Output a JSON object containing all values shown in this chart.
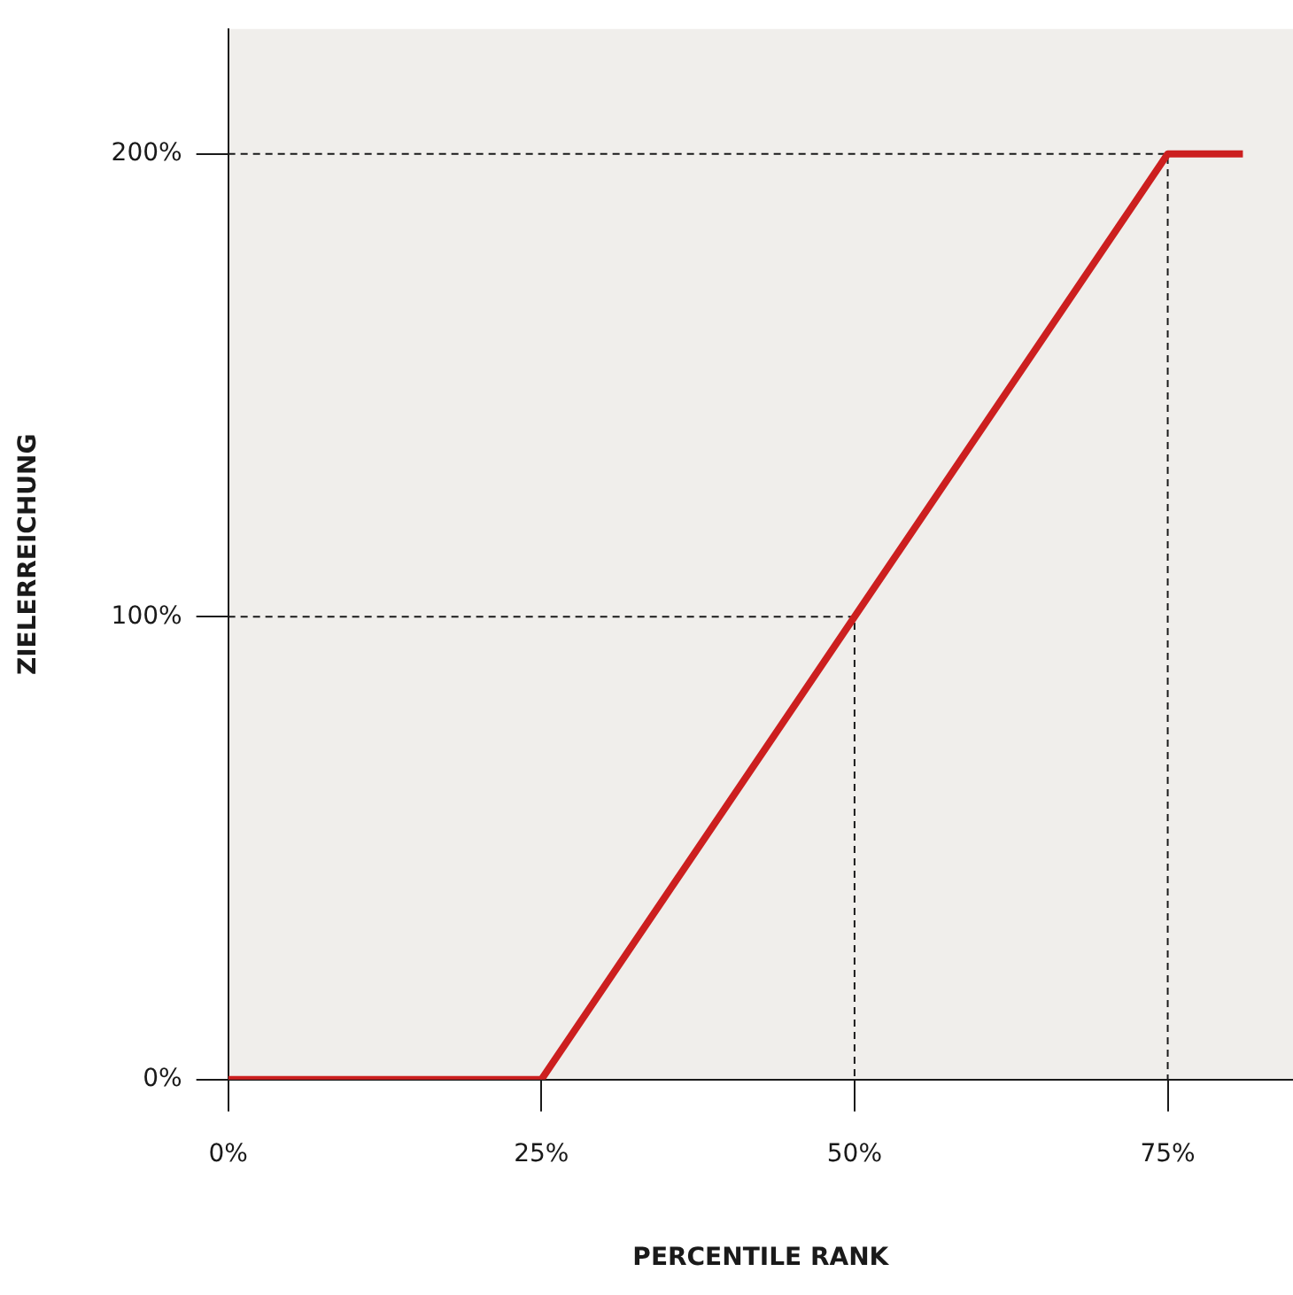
{
  "chart_data": {
    "type": "line",
    "xlabel": "PERCENTILE RANK",
    "ylabel": "ZIELERREICHUNG",
    "xlim": [
      0,
      85
    ],
    "xticks": [
      {
        "value": 0,
        "label": "0%"
      },
      {
        "value": 25,
        "label": "25%"
      },
      {
        "value": 50,
        "label": "50%"
      },
      {
        "value": 75,
        "label": "75%"
      }
    ],
    "ylim": [
      0,
      227
    ],
    "yticks": [
      {
        "value": 0,
        "label": "0%"
      },
      {
        "value": 100,
        "label": "100%"
      },
      {
        "value": 200,
        "label": "200%"
      }
    ],
    "grid": false,
    "legend": false,
    "marker": "none",
    "series": [
      {
        "color": "#cc1f1f",
        "x": [
          0,
          25,
          50,
          75,
          81
        ],
        "values": [
          0,
          0,
          100,
          200,
          200
        ],
        "line_style": "solid"
      },
      {
        "color": "#1a1a1a",
        "x": [
          0,
          50,
          50
        ],
        "values": [
          100,
          100,
          0
        ],
        "line_style": "dashed"
      },
      {
        "color": "#1a1a1a",
        "x": [
          0,
          75,
          75
        ],
        "values": [
          200,
          200,
          0
        ],
        "line_style": "dashed"
      }
    ]
  }
}
